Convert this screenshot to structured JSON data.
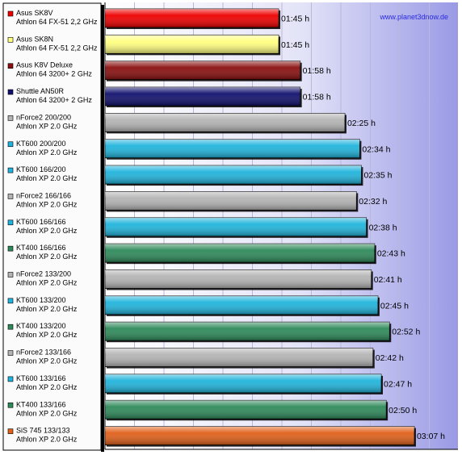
{
  "chart_data": {
    "type": "bar",
    "orientation": "horizontal",
    "source": "www.planet3dnow.de",
    "value_unit": "h",
    "grid": true,
    "series": [
      {
        "name": "Asus SK8V",
        "sub": "Athlon 64 FX-51 2,2 GHz",
        "label": "01:45 h",
        "minutes": 105,
        "color": "#ee0000"
      },
      {
        "name": "Asus SK8N",
        "sub": "Athlon 64 FX-51 2,2 GHz",
        "label": "01:45 h",
        "minutes": 105,
        "color": "#ffff80"
      },
      {
        "name": "Asus K8V Deluxe",
        "sub": "Athlon 64 3200+ 2 GHz",
        "label": "01:58 h",
        "minutes": 118,
        "color": "#8a0f0f"
      },
      {
        "name": "Shuttle AN50R",
        "sub": "Athlon 64 3200+ 2 GHz",
        "label": "01:58 h",
        "minutes": 118,
        "color": "#10106e"
      },
      {
        "name": "nForce2 200/200",
        "sub": "Athlon XP 2.0 GHz",
        "label": "02:25 h",
        "minutes": 145,
        "color": "#b4b4b4"
      },
      {
        "name": "KT600 200/200",
        "sub": "Athlon XP 2.0 GHz",
        "label": "02:34 h",
        "minutes": 154,
        "color": "#20b4dc"
      },
      {
        "name": "KT600 166/200",
        "sub": "Athlon XP 2.0 GHz",
        "label": "02:35 h",
        "minutes": 155,
        "color": "#20b4dc"
      },
      {
        "name": "nForce2 166/166",
        "sub": "Athlon XP 2.0 GHz",
        "label": "02:32 h",
        "minutes": 152,
        "color": "#b4b4b4"
      },
      {
        "name": "KT600 166/166",
        "sub": "Athlon XP 2.0 GHz",
        "label": "02:38 h",
        "minutes": 158,
        "color": "#20b4dc"
      },
      {
        "name": "KT400 166/166",
        "sub": "Athlon XP 2.0 GHz",
        "label": "02:43 h",
        "minutes": 163,
        "color": "#2e8a5a"
      },
      {
        "name": "nForce2 133/200",
        "sub": "Athlon XP 2.0 GHz",
        "label": "02:41 h",
        "minutes": 161,
        "color": "#b4b4b4"
      },
      {
        "name": "KT600 133/200",
        "sub": "Athlon XP 2.0 GHz",
        "label": "02:45 h",
        "minutes": 165,
        "color": "#20b4dc"
      },
      {
        "name": "KT400 133/200",
        "sub": "Athlon XP 2.0 GHz",
        "label": "02:52 h",
        "minutes": 172,
        "color": "#2e8a5a"
      },
      {
        "name": "nForce2 133/166",
        "sub": "Athlon XP 2.0 GHz",
        "label": "02:42 h",
        "minutes": 162,
        "color": "#b4b4b4"
      },
      {
        "name": "KT600 133/166",
        "sub": "Athlon XP 2.0 GHz",
        "label": "02:47 h",
        "minutes": 167,
        "color": "#20b4dc"
      },
      {
        "name": "KT400 133/166",
        "sub": "Athlon XP 2.0 GHz",
        "label": "02:50 h",
        "minutes": 170,
        "color": "#2e8a5a"
      },
      {
        "name": "SiS 745 133/133",
        "sub": "Athlon XP 2.0 GHz",
        "label": "03:07 h",
        "minutes": 187,
        "color": "#e0601a"
      }
    ]
  }
}
